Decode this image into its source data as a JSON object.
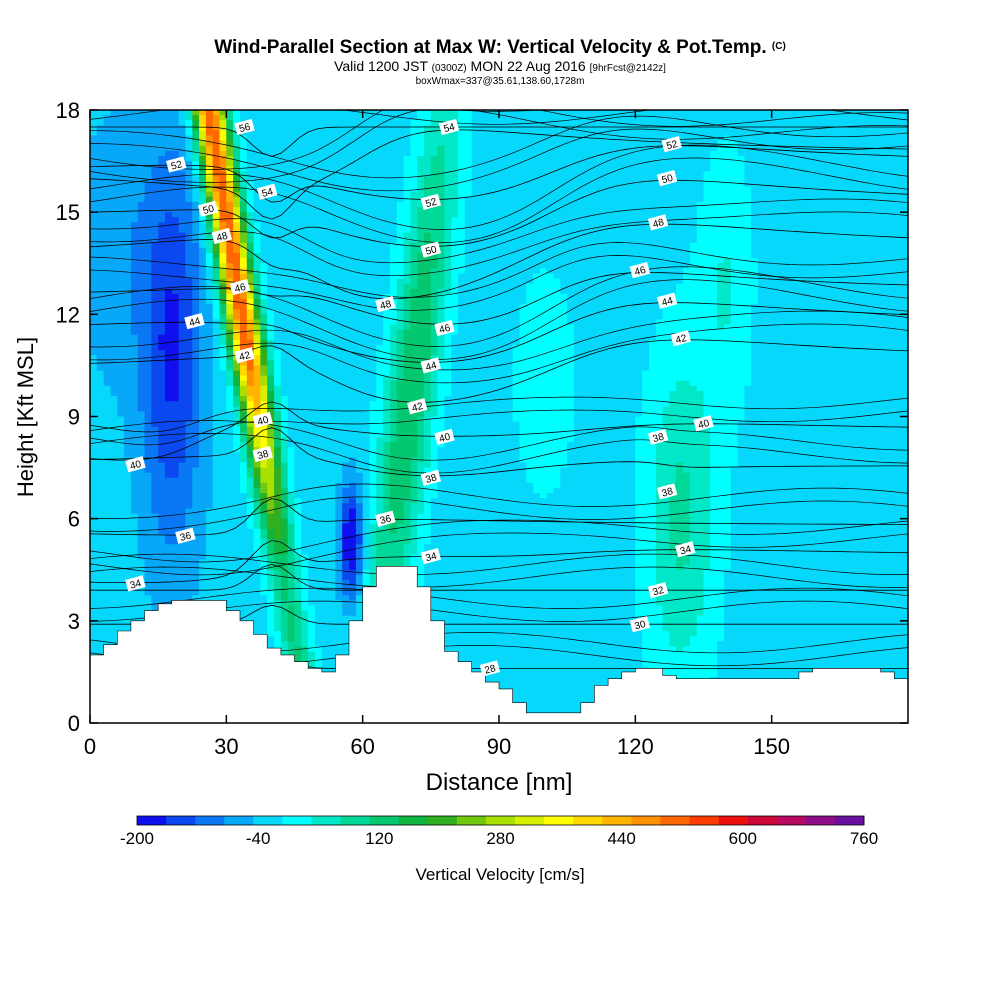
{
  "header": {
    "title": "Wind-Parallel Section at Max W: Vertical Velocity & Pot.Temp.",
    "title_mark": "(C)",
    "valid_prefix": "Valid 1200 JST",
    "valid_utc": "(0300Z)",
    "valid_date": "MON 22 Aug 2016",
    "forecast": "[9hrFcst@2142z]",
    "box_info": "boxWmax=337@35.61,138.60,1728m"
  },
  "chart_data": {
    "type": "heatmap",
    "xlabel": "Distance [nm]",
    "ylabel": "Height [Kft MSL]",
    "xlim": [
      0,
      180
    ],
    "ylim": [
      0,
      18
    ],
    "x_ticks": [
      "0",
      "30",
      "60",
      "90",
      "120",
      "150"
    ],
    "y_ticks": [
      "0",
      "3",
      "6",
      "9",
      "12",
      "15",
      "18"
    ],
    "colorbar": {
      "label": "Vertical Velocity [cm/s]",
      "tick_labels": [
        "-200",
        "-40",
        "120",
        "280",
        "440",
        "600",
        "760"
      ],
      "min": -200,
      "max": 760,
      "step": 40,
      "colors": [
        "#1010ee",
        "#0b48f0",
        "#0a78f5",
        "#08a8f8",
        "#06d8fb",
        "#00ffff",
        "#00e8c8",
        "#00d898",
        "#04c870",
        "#10b440",
        "#30b020",
        "#70c810",
        "#a8e000",
        "#d8f000",
        "#ffff00",
        "#ffd800",
        "#ffb400",
        "#ff9000",
        "#ff6800",
        "#ff3c00",
        "#ee1010",
        "#cc0838",
        "#b80860",
        "#8e0c88",
        "#6a10a0"
      ]
    },
    "velocity_features": [
      {
        "kind": "background",
        "value": -20
      },
      {
        "kind": "downdraft-band",
        "x_range": [
          4,
          30
        ],
        "height_range": [
          2,
          18
        ],
        "min_value": -180
      },
      {
        "kind": "updraft-plume",
        "x_range": [
          28,
          48
        ],
        "height_range": [
          1.5,
          18
        ],
        "max_value": 560
      },
      {
        "kind": "downdraft-core",
        "x_range": [
          54,
          62
        ],
        "height_range": [
          3.5,
          7
        ],
        "min_value": -200
      },
      {
        "kind": "updraft-band",
        "x_range": [
          62,
          84
        ],
        "height_range": [
          2,
          18
        ],
        "max_value": 220
      },
      {
        "kind": "weak-updraft",
        "x_range": [
          118,
          142
        ],
        "height_range": [
          1.5,
          17
        ],
        "max_value": 110
      }
    ],
    "theta_contours": {
      "label": "Pot.Temp. (C)",
      "levels": [
        28,
        30,
        32,
        34,
        36,
        38,
        40,
        42,
        44,
        46,
        48,
        50,
        52,
        54,
        56
      ],
      "labels": [
        {
          "text": "56",
          "x": 34,
          "y": 17.5
        },
        {
          "text": "54",
          "x": 39,
          "y": 15.6
        },
        {
          "text": "54",
          "x": 79,
          "y": 17.5
        },
        {
          "text": "52",
          "x": 19,
          "y": 16.4
        },
        {
          "text": "52",
          "x": 75,
          "y": 15.3
        },
        {
          "text": "52",
          "x": 128,
          "y": 17.0
        },
        {
          "text": "50",
          "x": 26,
          "y": 15.1
        },
        {
          "text": "50",
          "x": 75,
          "y": 13.9
        },
        {
          "text": "50",
          "x": 127,
          "y": 16.0
        },
        {
          "text": "48",
          "x": 29,
          "y": 14.3
        },
        {
          "text": "48",
          "x": 65,
          "y": 12.3
        },
        {
          "text": "48",
          "x": 125,
          "y": 14.7
        },
        {
          "text": "46",
          "x": 33,
          "y": 12.8
        },
        {
          "text": "46",
          "x": 78,
          "y": 11.6
        },
        {
          "text": "46",
          "x": 121,
          "y": 13.3
        },
        {
          "text": "44",
          "x": 23,
          "y": 11.8
        },
        {
          "text": "44",
          "x": 75,
          "y": 10.5
        },
        {
          "text": "44",
          "x": 127,
          "y": 12.4
        },
        {
          "text": "42",
          "x": 34,
          "y": 10.8
        },
        {
          "text": "42",
          "x": 72,
          "y": 9.3
        },
        {
          "text": "42",
          "x": 130,
          "y": 11.3
        },
        {
          "text": "40",
          "x": 38,
          "y": 8.9
        },
        {
          "text": "40",
          "x": 78,
          "y": 8.4
        },
        {
          "text": "40",
          "x": 135,
          "y": 8.8
        },
        {
          "text": "40",
          "x": 10,
          "y": 7.6
        },
        {
          "text": "38",
          "x": 38,
          "y": 7.9
        },
        {
          "text": "38",
          "x": 75,
          "y": 7.2
        },
        {
          "text": "38",
          "x": 125,
          "y": 8.4
        },
        {
          "text": "38",
          "x": 127,
          "y": 6.8
        },
        {
          "text": "36",
          "x": 21,
          "y": 5.5
        },
        {
          "text": "36",
          "x": 65,
          "y": 6.0
        },
        {
          "text": "34",
          "x": 10,
          "y": 4.1
        },
        {
          "text": "34",
          "x": 75,
          "y": 4.9
        },
        {
          "text": "34",
          "x": 131,
          "y": 5.1
        },
        {
          "text": "32",
          "x": 125,
          "y": 3.9
        },
        {
          "text": "30",
          "x": 121,
          "y": 2.9
        },
        {
          "text": "28",
          "x": 88,
          "y": 1.6
        }
      ]
    },
    "terrain": {
      "x": [
        0,
        3,
        6,
        9,
        12,
        15,
        18,
        21,
        24,
        27,
        30,
        33,
        36,
        39,
        42,
        45,
        48,
        51,
        54,
        57,
        60,
        63,
        66,
        69,
        72,
        75,
        78,
        81,
        84,
        87,
        90,
        93,
        96,
        99,
        102,
        105,
        108,
        111,
        114,
        117,
        120,
        123,
        126,
        129,
        132,
        135,
        138,
        141,
        144,
        147,
        150,
        153,
        156,
        159,
        162,
        165,
        168,
        171,
        174,
        177,
        180
      ],
      "height": [
        2.0,
        2.3,
        2.7,
        3.0,
        3.3,
        3.5,
        3.6,
        3.6,
        3.6,
        3.6,
        3.3,
        3.0,
        2.6,
        2.2,
        2.0,
        1.8,
        1.6,
        1.5,
        2.0,
        3.0,
        4.0,
        4.6,
        4.6,
        4.6,
        4.0,
        3.0,
        2.1,
        1.8,
        1.5,
        1.2,
        1.0,
        0.6,
        0.3,
        0.3,
        0.3,
        0.3,
        0.6,
        1.1,
        1.3,
        1.5,
        1.6,
        1.6,
        1.4,
        1.3,
        1.3,
        1.3,
        1.3,
        1.3,
        1.3,
        1.3,
        1.3,
        1.3,
        1.5,
        1.6,
        1.6,
        1.6,
        1.6,
        1.6,
        1.5,
        1.3,
        1.3
      ]
    }
  }
}
